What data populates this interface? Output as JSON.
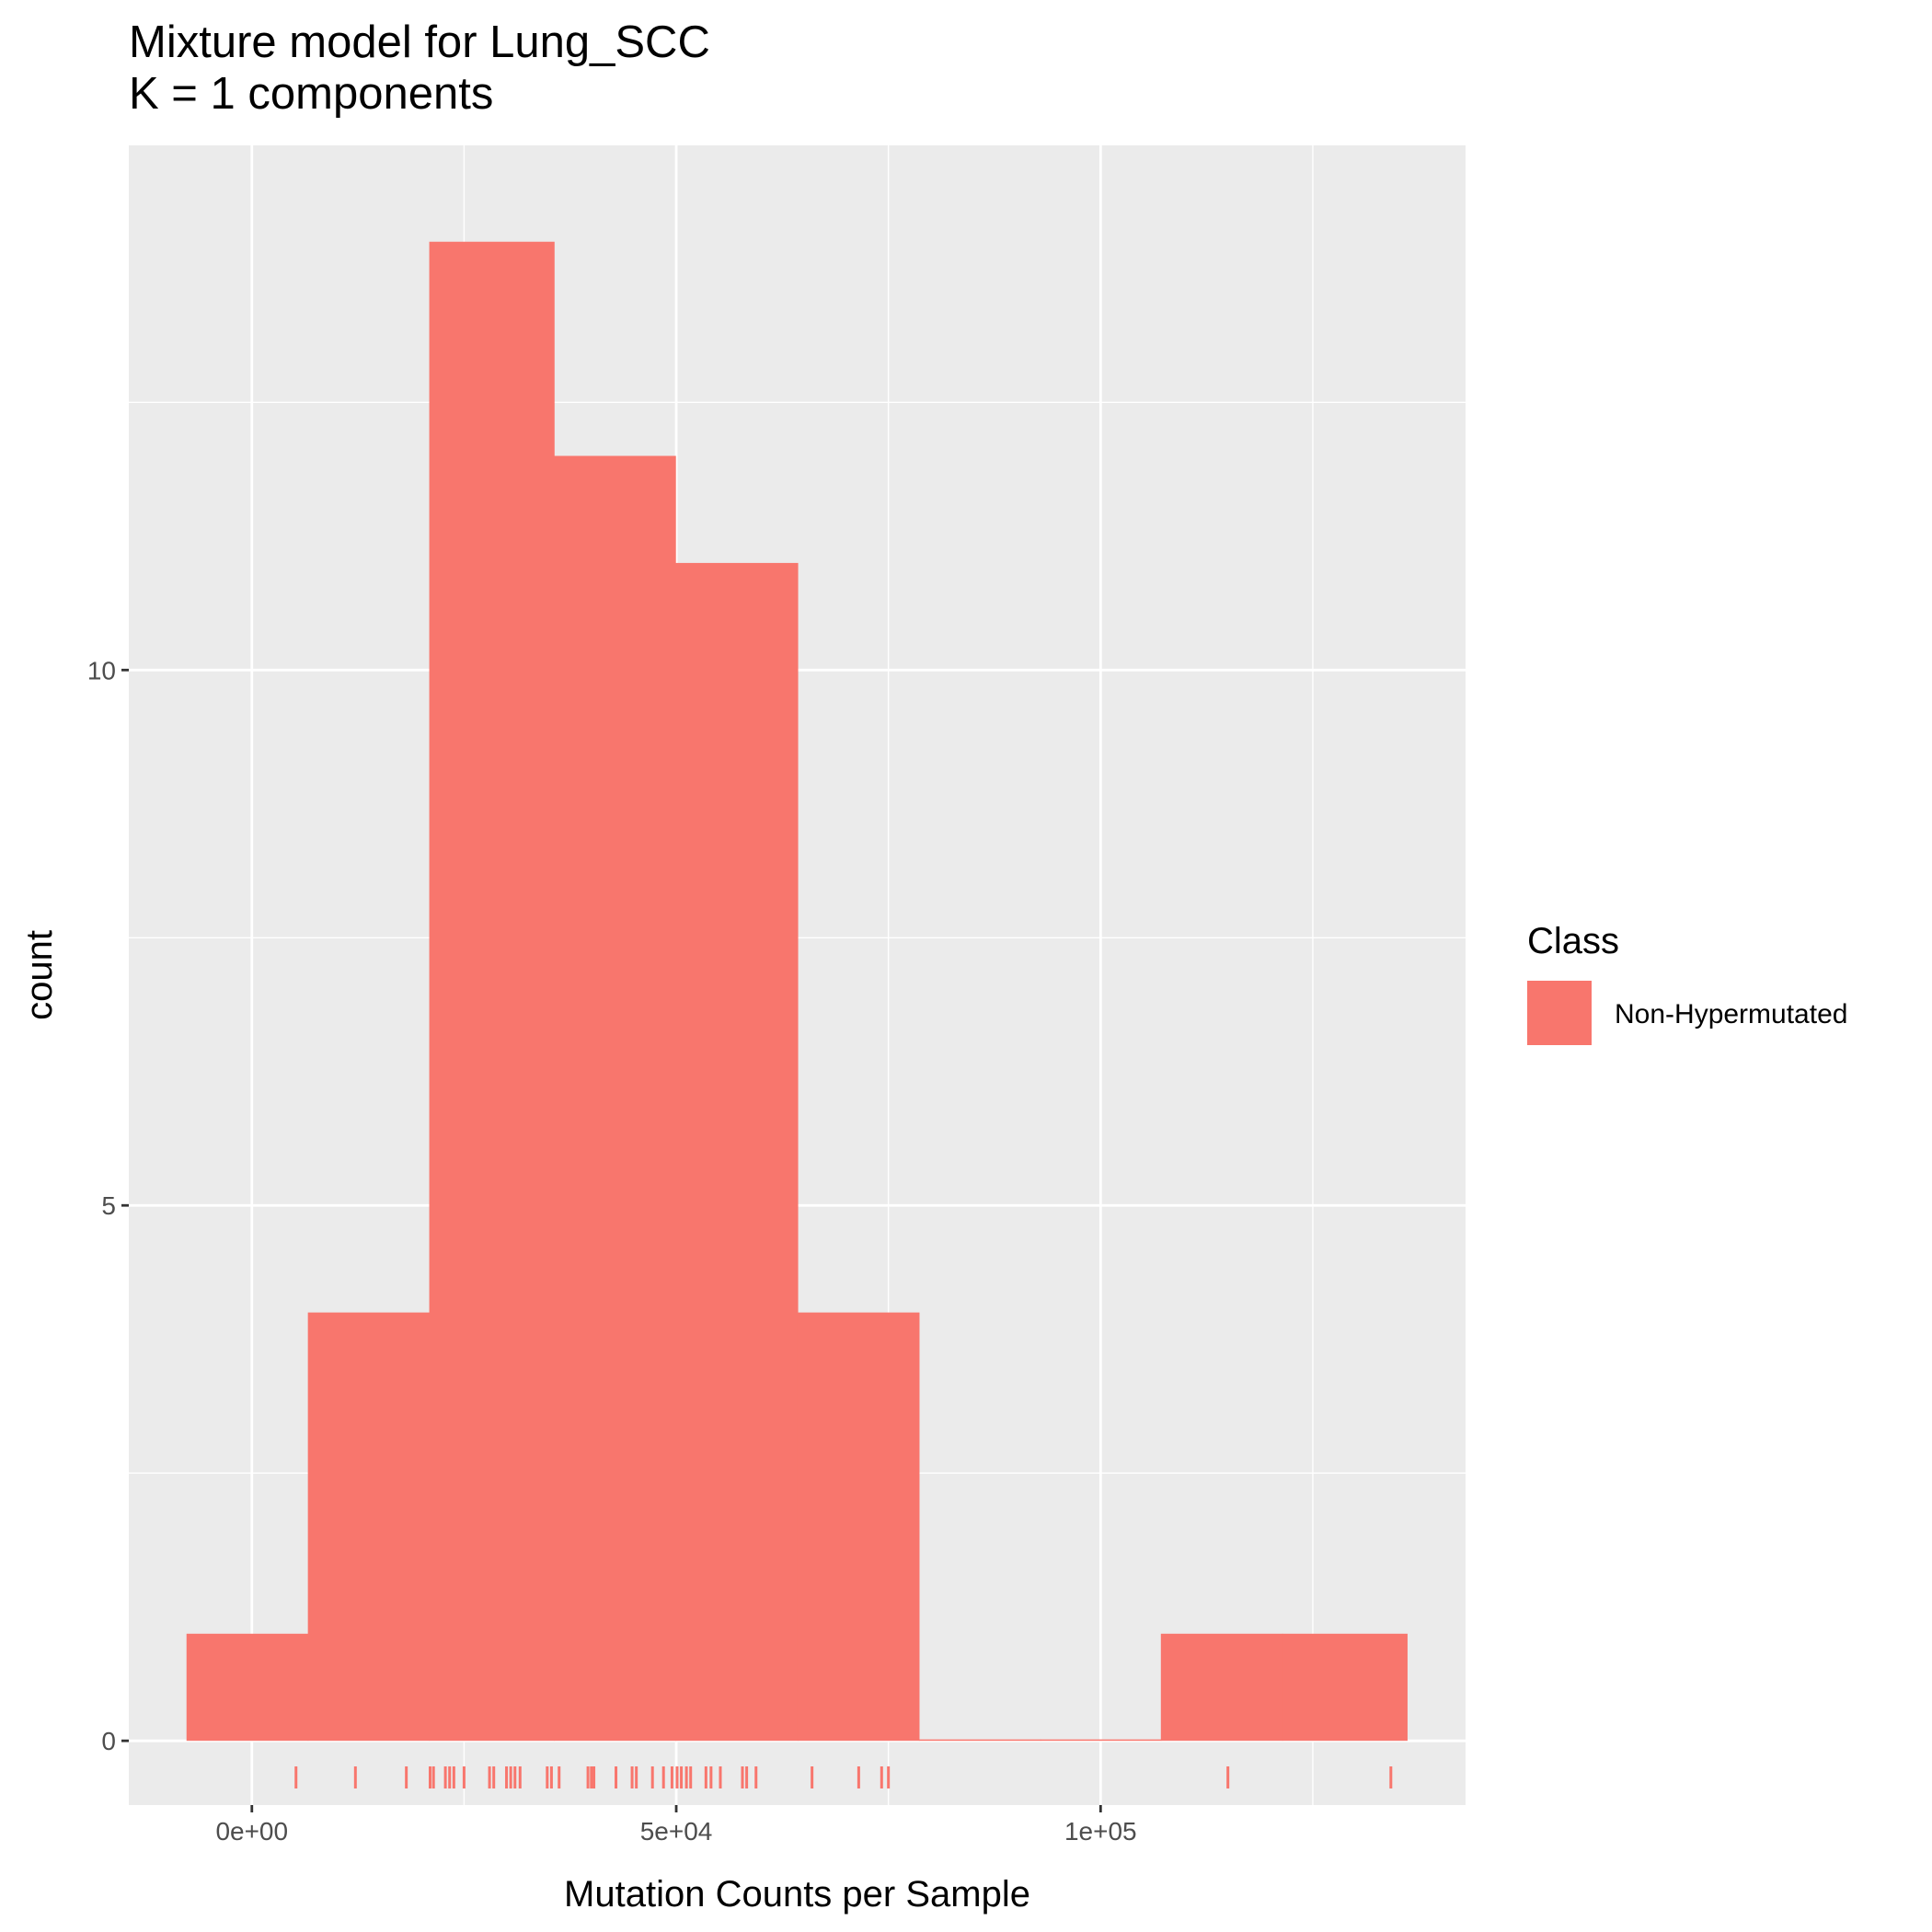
{
  "chart_data": {
    "type": "histogram",
    "title": "Mixture model for Lung_SCC",
    "subtitle": "K = 1 components",
    "xlabel": "Mutation Counts per Sample",
    "ylabel": "count",
    "xlim": [
      -14500,
      143000
    ],
    "ylim": [
      -0.6,
      14.9
    ],
    "x_ticks": [
      {
        "value": 0,
        "label": "0e+00"
      },
      {
        "value": 50000,
        "label": "5e+04"
      },
      {
        "value": 100000,
        "label": "1e+05"
      }
    ],
    "y_ticks": [
      {
        "value": 0,
        "label": "0"
      },
      {
        "value": 5,
        "label": "5"
      },
      {
        "value": 10,
        "label": "10"
      }
    ],
    "y_minor_gridlines": [
      2.5,
      7.5,
      12.5
    ],
    "x_minor_gridlines": [
      25000,
      75000,
      125000
    ],
    "grid": true,
    "bins": [
      {
        "x0": -7700,
        "x1": 6600,
        "count": 1
      },
      {
        "x0": 6600,
        "x1": 20900,
        "count": 4
      },
      {
        "x0": 20900,
        "x1": 35600,
        "count": 14
      },
      {
        "x0": 35600,
        "x1": 49900,
        "count": 12
      },
      {
        "x0": 49900,
        "x1": 64300,
        "count": 11
      },
      {
        "x0": 64300,
        "x1": 78600,
        "count": 4
      },
      {
        "x0": 78600,
        "x1": 92900,
        "count": 0
      },
      {
        "x0": 92900,
        "x1": 107100,
        "count": 0
      },
      {
        "x0": 107100,
        "x1": 121400,
        "count": 1
      },
      {
        "x0": 121400,
        "x1": 136100,
        "count": 1
      }
    ],
    "rug_x": [
      5200,
      12200,
      18200,
      21000,
      21400,
      22800,
      23300,
      23800,
      25000,
      28000,
      28500,
      30000,
      30500,
      31000,
      31600,
      34800,
      35300,
      36200,
      39600,
      40000,
      40300,
      42900,
      44800,
      45300,
      47200,
      48500,
      49500,
      50100,
      50600,
      51200,
      51700,
      53500,
      54100,
      55200,
      57800,
      58300,
      59400,
      66000,
      71500,
      74200,
      75000,
      115000,
      134200
    ],
    "series": [
      {
        "name": "Non-Hypermutated",
        "color": "#f8766d"
      }
    ],
    "legend": {
      "title": "Class",
      "position": "right"
    },
    "colors": {
      "panel": "#ebebeb",
      "grid": "#ffffff",
      "bar": "#f8766d",
      "tick": "#333333"
    }
  }
}
